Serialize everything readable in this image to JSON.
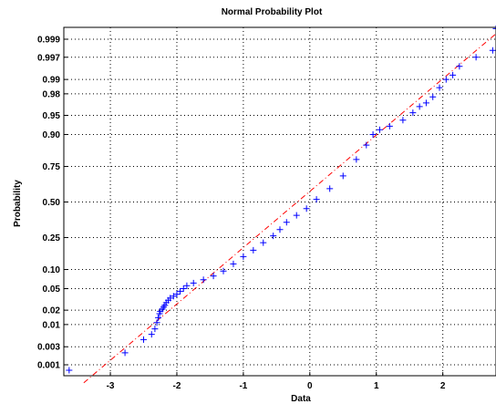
{
  "chart_data": {
    "type": "scatter",
    "title": "Normal Probability Plot",
    "xlabel": "Data",
    "ylabel": "Probability",
    "xlim": [
      -3.7,
      2.8
    ],
    "x_ticks": [
      -3,
      -2,
      -1,
      0,
      1,
      2
    ],
    "y_ticks": [
      "0.001",
      "0.003",
      "0.01",
      "0.02",
      "0.05",
      "0.10",
      "0.25",
      "0.50",
      "0.75",
      "0.90",
      "0.95",
      "0.98",
      "0.99",
      "0.997",
      "0.999"
    ],
    "y_tick_values": [
      0.001,
      0.003,
      0.01,
      0.02,
      0.05,
      0.1,
      0.25,
      0.5,
      0.75,
      0.9,
      0.95,
      0.98,
      0.99,
      0.997,
      0.999
    ],
    "grid": true,
    "y_scale": "normal-probability",
    "reference_line": {
      "x": [
        -3.4,
        2.8
      ],
      "y_probability": [
        0.0003,
        0.9993
      ],
      "style": "dash-dot",
      "color": "#ff0000"
    },
    "series": [
      {
        "marker": "+",
        "color": "#0000ff",
        "x": [
          -3.62,
          -2.78,
          -2.5,
          -2.38,
          -2.33,
          -2.3,
          -2.28,
          -2.26,
          -2.25,
          -2.22,
          -2.2,
          -2.18,
          -2.16,
          -2.13,
          -2.1,
          -2.05,
          -2.0,
          -1.95,
          -1.9,
          -1.85,
          -1.75,
          -1.6,
          -1.45,
          -1.3,
          -1.15,
          -1.0,
          -0.85,
          -0.7,
          -0.55,
          -0.45,
          -0.35,
          -0.2,
          -0.05,
          0.1,
          0.3,
          0.5,
          0.7,
          0.85,
          0.95,
          1.05,
          1.2,
          1.4,
          1.55,
          1.65,
          1.75,
          1.85,
          1.95,
          2.05,
          2.15,
          2.25,
          2.5,
          2.75,
          2.8
        ],
        "y": [
          0.0007,
          0.0021,
          0.0045,
          0.006,
          0.008,
          0.011,
          0.014,
          0.017,
          0.019,
          0.021,
          0.023,
          0.025,
          0.028,
          0.031,
          0.034,
          0.037,
          0.04,
          0.045,
          0.05,
          0.056,
          0.062,
          0.07,
          0.08,
          0.095,
          0.12,
          0.15,
          0.18,
          0.22,
          0.26,
          0.3,
          0.35,
          0.4,
          0.45,
          0.52,
          0.6,
          0.69,
          0.79,
          0.86,
          0.9,
          0.915,
          0.925,
          0.94,
          0.955,
          0.965,
          0.97,
          0.977,
          0.985,
          0.99,
          0.992,
          0.995,
          0.997,
          0.998,
          0.9995
        ]
      }
    ]
  }
}
